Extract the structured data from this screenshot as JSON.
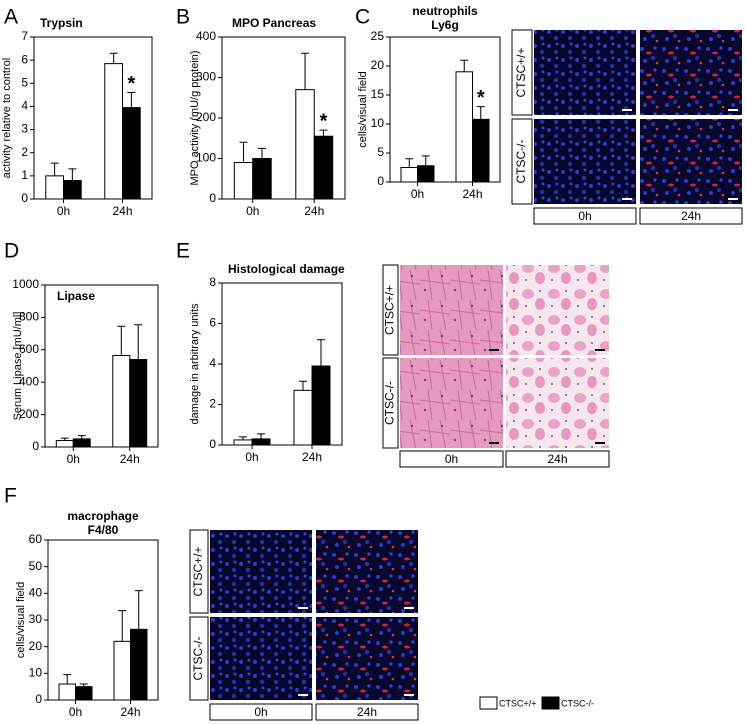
{
  "chart_data": [
    {
      "type": "bar",
      "panel": "A",
      "title": [
        "Trypsin"
      ],
      "y_label": "activity relative to control",
      "categories": [
        "0h",
        "24h"
      ],
      "series": [
        {
          "color": "#ffffff",
          "values": [
            1.0,
            5.85
          ],
          "errors": [
            0.55,
            0.45
          ]
        },
        {
          "color": "#000000",
          "values": [
            0.8,
            3.95
          ],
          "errors": [
            0.5,
            0.65
          ]
        }
      ],
      "ylim": [
        0,
        7
      ],
      "yticks": [
        0,
        1,
        2,
        3,
        4,
        5,
        6,
        7
      ],
      "annotations": [
        {
          "text": "*",
          "series": 1,
          "category": "24h"
        }
      ]
    },
    {
      "type": "bar",
      "panel": "B",
      "title": [
        "MPO Pancreas"
      ],
      "y_label": "MPO activity (mU/g protein)",
      "categories": [
        "0h",
        "24h"
      ],
      "series": [
        {
          "color": "#ffffff",
          "values": [
            90,
            270
          ],
          "errors": [
            50,
            90
          ]
        },
        {
          "color": "#000000",
          "values": [
            100,
            155
          ],
          "errors": [
            25,
            15
          ]
        }
      ],
      "ylim": [
        0,
        400
      ],
      "yticks": [
        0,
        100,
        200,
        300,
        400
      ],
      "annotations": [
        {
          "text": "*",
          "series": 1,
          "category": "24h"
        }
      ]
    },
    {
      "type": "bar",
      "panel": "C",
      "title": [
        "neutrophils",
        "Ly6g"
      ],
      "y_label": "cells/visual field",
      "categories": [
        "0h",
        "24h"
      ],
      "series": [
        {
          "color": "#ffffff",
          "values": [
            2.5,
            19
          ],
          "errors": [
            1.5,
            2
          ]
        },
        {
          "color": "#000000",
          "values": [
            2.8,
            10.8
          ],
          "errors": [
            1.7,
            2.2
          ]
        }
      ],
      "ylim": [
        0,
        25
      ],
      "yticks": [
        0,
        5,
        10,
        15,
        20,
        25
      ],
      "annotations": [
        {
          "text": "*",
          "series": 1,
          "category": "24h"
        }
      ],
      "image_panel": {
        "row_labels": [
          "CTSC+/+",
          "CTSC-/-"
        ],
        "col_labels": [
          "0h",
          "24h"
        ]
      }
    },
    {
      "type": "bar",
      "panel": "D",
      "title": [
        "Lipase"
      ],
      "y_label": "Serum Lipase [mU/ml]",
      "categories": [
        "0h",
        "24h"
      ],
      "series": [
        {
          "color": "#ffffff",
          "values": [
            40,
            565
          ],
          "errors": [
            15,
            180
          ]
        },
        {
          "color": "#000000",
          "values": [
            50,
            540
          ],
          "errors": [
            20,
            215
          ]
        }
      ],
      "ylim": [
        0,
        1000
      ],
      "yticks": [
        0,
        200,
        400,
        600,
        800,
        1000
      ],
      "annotations": []
    },
    {
      "type": "bar",
      "panel": "E",
      "title": [
        "Histological damage"
      ],
      "y_label": "damage in arbitrary units",
      "categories": [
        "0h",
        "24h"
      ],
      "series": [
        {
          "color": "#ffffff",
          "values": [
            0.25,
            2.7
          ],
          "errors": [
            0.15,
            0.45
          ]
        },
        {
          "color": "#000000",
          "values": [
            0.3,
            3.9
          ],
          "errors": [
            0.25,
            1.3
          ]
        }
      ],
      "ylim": [
        0,
        8
      ],
      "yticks": [
        0,
        2,
        4,
        6,
        8
      ],
      "annotations": [],
      "image_panel": {
        "row_labels": [
          "CTSC+/+",
          "CTSC-/-"
        ],
        "col_labels": [
          "0h",
          "24h"
        ]
      }
    },
    {
      "type": "bar",
      "panel": "F",
      "title": [
        "macrophage",
        "F4/80"
      ],
      "y_label": "cells/visual field",
      "categories": [
        "0h",
        "24h"
      ],
      "series": [
        {
          "color": "#ffffff",
          "values": [
            6,
            22
          ],
          "errors": [
            3.5,
            11.5
          ]
        },
        {
          "color": "#000000",
          "values": [
            5,
            26.5
          ],
          "errors": [
            1,
            14.5
          ]
        }
      ],
      "ylim": [
        0,
        60
      ],
      "yticks": [
        0,
        10,
        20,
        30,
        40,
        50,
        60
      ],
      "annotations": [],
      "image_panel": {
        "row_labels": [
          "CTSC+/+",
          "CTSC-/-"
        ],
        "col_labels": [
          "0h",
          "24h"
        ]
      }
    }
  ],
  "legend": [
    {
      "name": "CTSC+/+",
      "color": "#ffffff"
    },
    {
      "name": "CTSC-/-",
      "color": "#000000"
    }
  ]
}
